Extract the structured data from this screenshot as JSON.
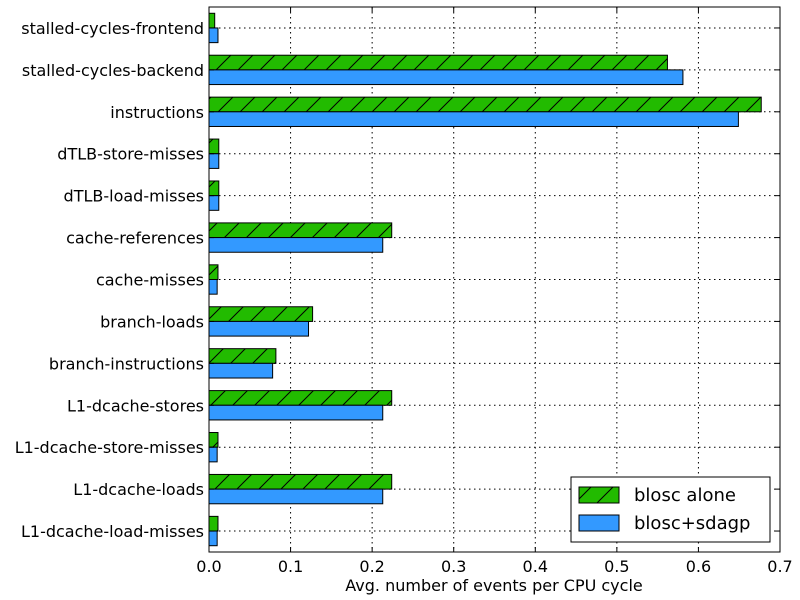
{
  "chart_data": {
    "type": "bar",
    "orientation": "horizontal",
    "title": "",
    "xlabel": "Avg. number of events per CPU cycle",
    "ylabel": "",
    "xlim": [
      0.0,
      0.7
    ],
    "x_ticks": [
      "0.0",
      "0.1",
      "0.2",
      "0.3",
      "0.4",
      "0.5",
      "0.6",
      "0.7"
    ],
    "grid": true,
    "legend_position": "bottom-right",
    "categories": [
      "stalled-cycles-frontend",
      "stalled-cycles-backend",
      "instructions",
      "dTLB-store-misses",
      "dTLB-load-misses",
      "cache-references",
      "cache-misses",
      "branch-loads",
      "branch-instructions",
      "L1-dcache-stores",
      "L1-dcache-store-misses",
      "L1-dcache-loads",
      "L1-dcache-load-misses"
    ],
    "series": [
      {
        "name": "blosc alone",
        "color": "#22bb00",
        "pattern": "hatch",
        "values": [
          0.007,
          0.562,
          0.677,
          0.012,
          0.012,
          0.224,
          0.011,
          0.127,
          0.082,
          0.224,
          0.011,
          0.224,
          0.011
        ]
      },
      {
        "name": "blosc+sdagp",
        "color": "#3399ff",
        "pattern": "solid",
        "values": [
          0.011,
          0.581,
          0.649,
          0.012,
          0.012,
          0.213,
          0.01,
          0.122,
          0.078,
          0.213,
          0.01,
          0.213,
          0.01
        ]
      }
    ]
  }
}
